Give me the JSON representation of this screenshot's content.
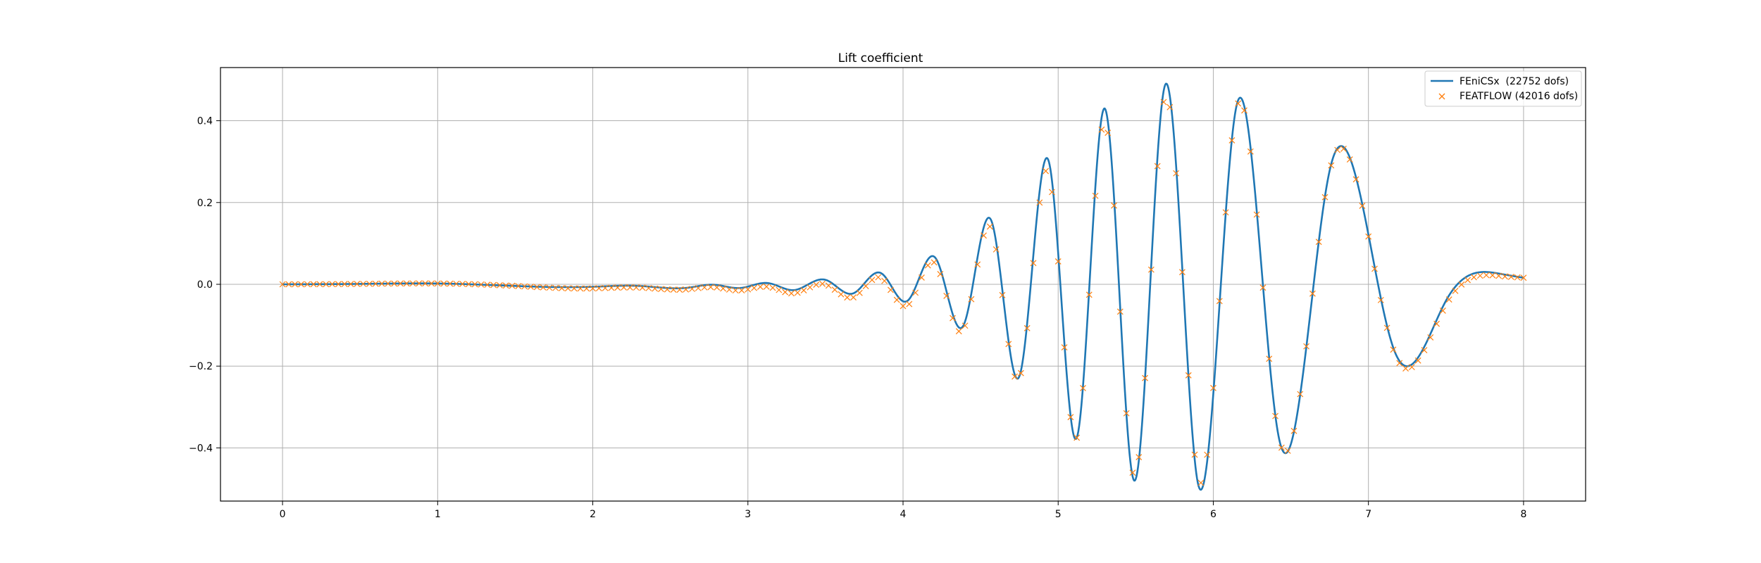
{
  "chart_data": {
    "type": "line",
    "title": "Lift coefficient",
    "xlabel": "",
    "ylabel": "",
    "xlim": [
      -0.4,
      8.4
    ],
    "ylim": [
      -0.53,
      0.53
    ],
    "xticks": [
      0,
      1,
      2,
      3,
      4,
      5,
      6,
      7,
      8
    ],
    "yticks": [
      -0.4,
      -0.2,
      0.0,
      0.2,
      0.4
    ],
    "xtick_labels": [
      "0",
      "1",
      "2",
      "3",
      "4",
      "5",
      "6",
      "7",
      "8"
    ],
    "ytick_labels": [
      "−0.4",
      "−0.2",
      "0.0",
      "0.2",
      "0.4"
    ],
    "grid": true,
    "legend_position": "top-right",
    "series": [
      {
        "name": "FEniCSx  (22752 dofs)",
        "style": "line",
        "color": "#1f77b4",
        "x": [
          0.0,
          0.5,
          1.0,
          1.5,
          2.0,
          2.3,
          2.62,
          2.78,
          2.95,
          3.13,
          3.3,
          3.5,
          3.68,
          3.86,
          4.03,
          4.21,
          4.39,
          4.57,
          4.75,
          4.94,
          5.12,
          5.3,
          5.49,
          5.69,
          5.9,
          6.15,
          6.42,
          6.75,
          7.17,
          7.5,
          7.86,
          8.0
        ],
        "y": [
          0.0,
          0.001,
          0.002,
          -0.004,
          -0.006,
          -0.004,
          -0.008,
          -0.001,
          -0.009,
          0.003,
          -0.014,
          0.011,
          -0.022,
          0.027,
          -0.04,
          0.064,
          -0.1,
          0.155,
          -0.225,
          0.3,
          -0.375,
          0.43,
          -0.48,
          0.488,
          -0.485,
          0.437,
          -0.37,
          0.278,
          -0.165,
          -0.04,
          0.025,
          0.016
        ]
      },
      {
        "name": "FEATFLOW (42016 dofs)",
        "style": "marker-x",
        "color": "#ff7f0e",
        "x": [
          0.0,
          0.5,
          1.0,
          1.5,
          2.0,
          2.3,
          2.62,
          2.78,
          2.95,
          3.13,
          3.3,
          3.5,
          3.68,
          3.86,
          4.03,
          4.21,
          4.39,
          4.57,
          4.75,
          4.94,
          5.12,
          5.3,
          5.49,
          5.69,
          5.9,
          6.15,
          6.42,
          6.75,
          7.17,
          7.5,
          7.86,
          8.0
        ],
        "y": [
          0.0,
          0.001,
          0.002,
          -0.004,
          -0.01,
          -0.008,
          -0.012,
          -0.007,
          -0.015,
          -0.006,
          -0.022,
          0.0,
          -0.032,
          0.015,
          -0.052,
          0.05,
          -0.11,
          0.135,
          -0.23,
          0.27,
          -0.375,
          0.4,
          -0.47,
          0.46,
          -0.47,
          0.43,
          -0.37,
          0.275,
          -0.17,
          -0.05,
          0.02,
          0.016
        ]
      }
    ],
    "colors": {
      "fenicsx": "#1f77b4",
      "featflow": "#ff7f0e",
      "grid": "#b0b0b0"
    }
  }
}
